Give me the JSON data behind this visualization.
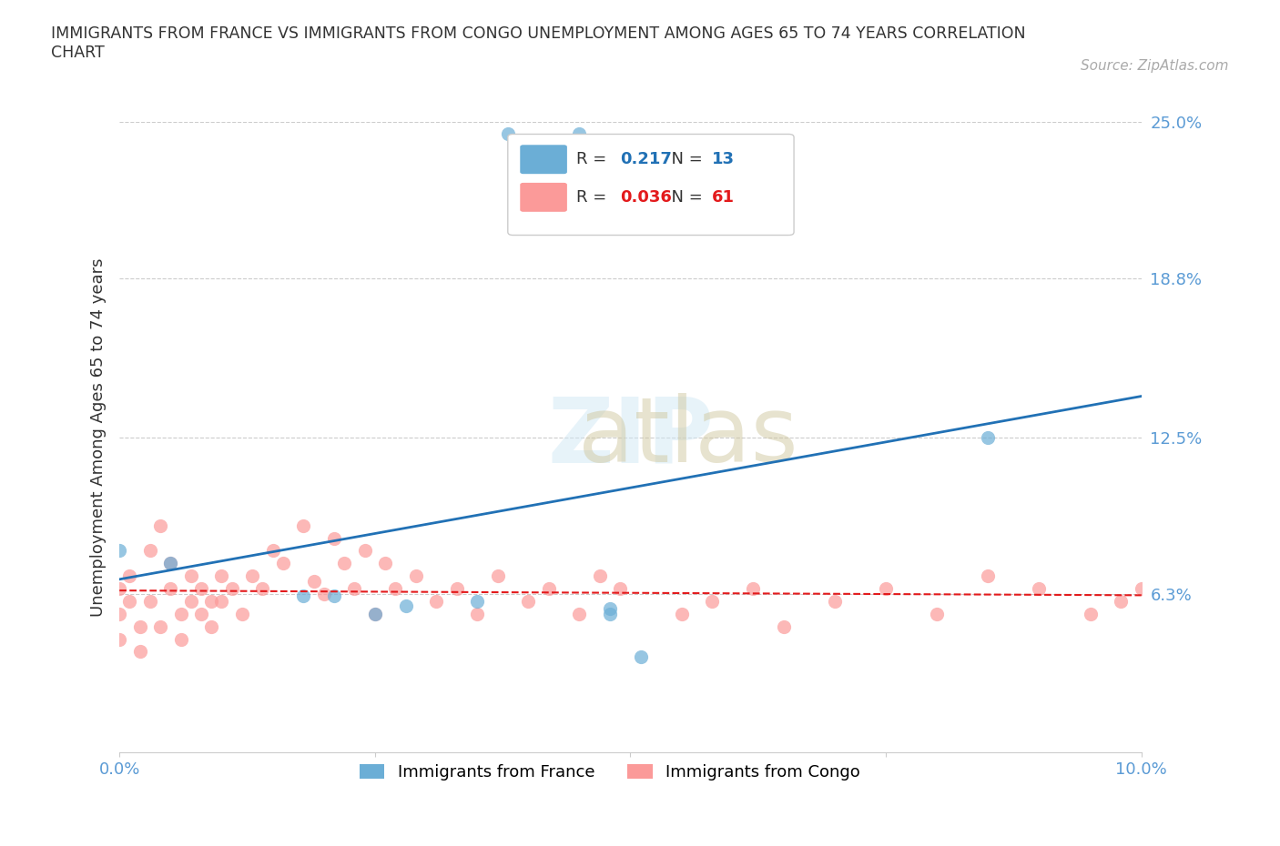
{
  "title": "IMMIGRANTS FROM FRANCE VS IMMIGRANTS FROM CONGO UNEMPLOYMENT AMONG AGES 65 TO 74 YEARS CORRELATION\nCHART",
  "source": "Source: ZipAtlas.com",
  "xlabel": "",
  "ylabel": "Unemployment Among Ages 65 to 74 years",
  "xlim": [
    0.0,
    0.1
  ],
  "ylim": [
    0.0,
    0.25
  ],
  "xticks": [
    0.0,
    0.025,
    0.05,
    0.075,
    0.1
  ],
  "xtick_labels": [
    "0.0%",
    "",
    "",
    "",
    "10.0%"
  ],
  "ytick_labels": [
    "25.0%",
    "18.8%",
    "12.5%",
    "6.3%",
    ""
  ],
  "ytick_positions": [
    0.25,
    0.188,
    0.125,
    0.063,
    0.0
  ],
  "france_r": 0.217,
  "france_n": 13,
  "congo_r": 0.036,
  "congo_n": 61,
  "france_color": "#6baed6",
  "congo_color": "#fb9a99",
  "france_line_color": "#2171b5",
  "congo_line_color": "#e31a1c",
  "watermark": "ZIPatlas",
  "france_x": [
    0.038,
    0.045,
    0.0,
    0.005,
    0.018,
    0.021,
    0.025,
    0.028,
    0.035,
    0.048,
    0.048,
    0.085,
    0.051
  ],
  "france_y": [
    0.245,
    0.245,
    0.08,
    0.075,
    0.062,
    0.062,
    0.055,
    0.058,
    0.06,
    0.055,
    0.057,
    0.125,
    0.038
  ],
  "congo_x": [
    0.0,
    0.0,
    0.0,
    0.001,
    0.001,
    0.002,
    0.002,
    0.003,
    0.003,
    0.004,
    0.004,
    0.005,
    0.005,
    0.006,
    0.006,
    0.007,
    0.007,
    0.008,
    0.008,
    0.009,
    0.009,
    0.01,
    0.01,
    0.011,
    0.012,
    0.013,
    0.014,
    0.015,
    0.016,
    0.018,
    0.019,
    0.02,
    0.021,
    0.022,
    0.023,
    0.024,
    0.025,
    0.026,
    0.027,
    0.029,
    0.031,
    0.033,
    0.035,
    0.037,
    0.04,
    0.042,
    0.045,
    0.047,
    0.049,
    0.055,
    0.058,
    0.062,
    0.065,
    0.07,
    0.075,
    0.08,
    0.085,
    0.09,
    0.095,
    0.098,
    0.1
  ],
  "congo_y": [
    0.065,
    0.055,
    0.045,
    0.07,
    0.06,
    0.05,
    0.04,
    0.08,
    0.06,
    0.09,
    0.05,
    0.075,
    0.065,
    0.055,
    0.045,
    0.07,
    0.06,
    0.065,
    0.055,
    0.06,
    0.05,
    0.07,
    0.06,
    0.065,
    0.055,
    0.07,
    0.065,
    0.08,
    0.075,
    0.09,
    0.068,
    0.063,
    0.085,
    0.075,
    0.065,
    0.08,
    0.055,
    0.075,
    0.065,
    0.07,
    0.06,
    0.065,
    0.055,
    0.07,
    0.06,
    0.065,
    0.055,
    0.07,
    0.065,
    0.055,
    0.06,
    0.065,
    0.05,
    0.06,
    0.065,
    0.055,
    0.07,
    0.065,
    0.055,
    0.06,
    0.065
  ]
}
